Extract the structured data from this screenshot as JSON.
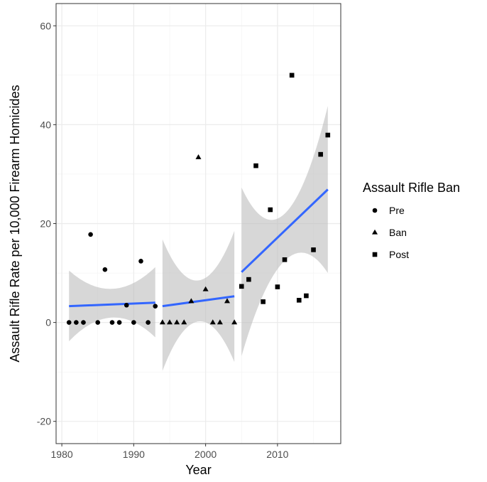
{
  "chart_data": {
    "type": "scatter",
    "xlabel": "Year",
    "ylabel": "Assault Rifle Rate per 10,000 Firearm Homicides",
    "xlim": [
      1979.2,
      2018.8
    ],
    "ylim": [
      -24.5,
      64.5
    ],
    "x_ticks": [
      "1980",
      "1990",
      "2000",
      "2010"
    ],
    "y_ticks": [
      "-20",
      "0",
      "20",
      "40",
      "60"
    ],
    "grid": true,
    "legend_title": "Assault Rifle Ban",
    "legend_position": "right",
    "fit_line_color": "#3366ff",
    "band_color": "#bdbdbd",
    "point_color": "#000000",
    "series": [
      {
        "name": "Pre",
        "marker": "circle",
        "points": [
          [
            1981,
            0
          ],
          [
            1982,
            0
          ],
          [
            1983,
            0
          ],
          [
            1984,
            17.8
          ],
          [
            1985,
            0
          ],
          [
            1986,
            10.7
          ],
          [
            1987,
            0
          ],
          [
            1988,
            0
          ],
          [
            1989,
            3.5
          ],
          [
            1990,
            0
          ],
          [
            1991,
            12.4
          ],
          [
            1992,
            0
          ],
          [
            1993,
            3.3
          ]
        ],
        "fit": {
          "x": [
            1981,
            1993
          ],
          "y": [
            3.3,
            4.0
          ]
        },
        "ci": {
          "x": [
            1981,
            1987,
            1993
          ],
          "lower": [
            -3.8,
            1.0,
            -3.0
          ],
          "upper": [
            10.5,
            6.8,
            11.2
          ]
        }
      },
      {
        "name": "Ban",
        "marker": "triangle",
        "points": [
          [
            1994,
            0
          ],
          [
            1995,
            0
          ],
          [
            1996,
            0
          ],
          [
            1997,
            0
          ],
          [
            1998,
            4.3
          ],
          [
            1999,
            33.4
          ],
          [
            2000,
            6.7
          ],
          [
            2001,
            0
          ],
          [
            2002,
            0
          ],
          [
            2003,
            4.3
          ],
          [
            2004,
            0
          ]
        ],
        "fit": {
          "x": [
            1994,
            2004
          ],
          "y": [
            3.3,
            5.3
          ]
        },
        "ci": {
          "x": [
            1994,
            1999,
            2004
          ],
          "lower": [
            -9.8,
            0.2,
            -8.0
          ],
          "upper": [
            16.8,
            8.5,
            18.5
          ]
        }
      },
      {
        "name": "Post",
        "marker": "square",
        "points": [
          [
            2005,
            7.3
          ],
          [
            2006,
            8.7
          ],
          [
            2007,
            31.7
          ],
          [
            2008,
            4.2
          ],
          [
            2009,
            22.8
          ],
          [
            2010,
            7.2
          ],
          [
            2011,
            12.7
          ],
          [
            2012,
            50.0
          ],
          [
            2013,
            4.5
          ],
          [
            2014,
            5.4
          ],
          [
            2015,
            14.7
          ],
          [
            2016,
            34.0
          ],
          [
            2017,
            37.9
          ]
        ],
        "fit": {
          "x": [
            2005,
            2017
          ],
          "y": [
            10.2,
            26.9
          ]
        },
        "ci": {
          "x": [
            2005,
            2011,
            2017
          ],
          "lower": [
            -6.8,
            12.5,
            10.0
          ],
          "upper": [
            27.3,
            22.0,
            43.8
          ]
        }
      }
    ]
  }
}
